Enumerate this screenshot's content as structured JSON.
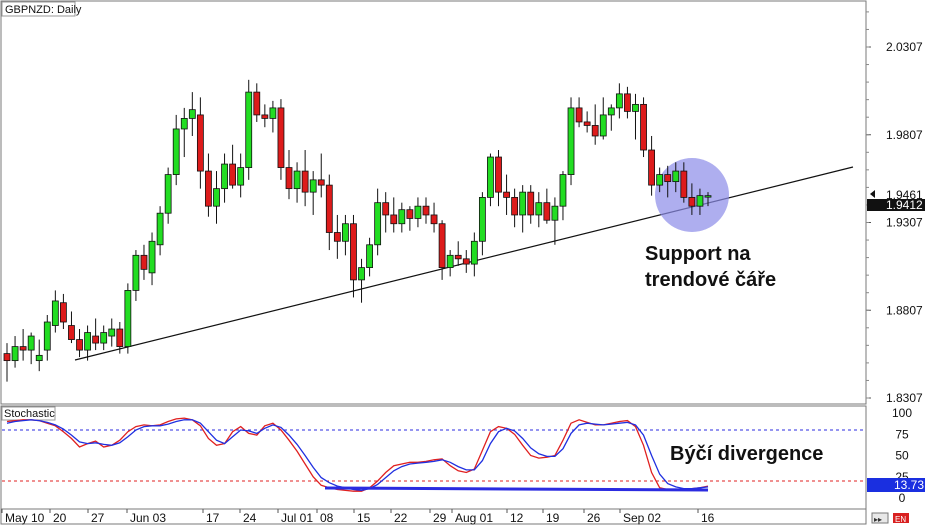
{
  "chart_data": [
    {
      "type": "candlestick",
      "title": "GBPNZD: Daily",
      "ylim": [
        1.83,
        2.055
      ],
      "y_ticks": [
        "2.0307",
        "1.9807",
        "1.9307",
        "1.8807",
        "1.8307"
      ],
      "x_ticks": [
        "May 10",
        "20",
        "27",
        "Jun 03",
        "17",
        "24",
        "Jul 01",
        "08",
        "15",
        "22",
        "29",
        "Aug 01",
        "12",
        "19",
        "26",
        "Sep 02",
        "16"
      ],
      "price_labels": {
        "last": "1.9461",
        "current": "1.9412"
      },
      "annotation": "Support na\ntrendové čáře",
      "ohlc": [
        [
          1.856,
          1.862,
          1.84,
          1.852
        ],
        [
          1.852,
          1.866,
          1.848,
          1.86
        ],
        [
          1.86,
          1.87,
          1.852,
          1.858
        ],
        [
          1.858,
          1.868,
          1.85,
          1.866
        ],
        [
          1.852,
          1.864,
          1.846,
          1.855
        ],
        [
          1.858,
          1.878,
          1.852,
          1.874
        ],
        [
          1.872,
          1.892,
          1.868,
          1.886
        ],
        [
          1.885,
          1.89,
          1.87,
          1.874
        ],
        [
          1.872,
          1.88,
          1.862,
          1.864
        ],
        [
          1.864,
          1.87,
          1.854,
          1.858
        ],
        [
          1.858,
          1.872,
          1.852,
          1.868
        ],
        [
          1.866,
          1.876,
          1.858,
          1.862
        ],
        [
          1.862,
          1.872,
          1.858,
          1.868
        ],
        [
          1.866,
          1.876,
          1.86,
          1.87
        ],
        [
          1.87,
          1.874,
          1.856,
          1.86
        ],
        [
          1.86,
          1.896,
          1.856,
          1.892
        ],
        [
          1.892,
          1.915,
          1.886,
          1.912
        ],
        [
          1.912,
          1.918,
          1.898,
          1.904
        ],
        [
          1.902,
          1.925,
          1.895,
          1.92
        ],
        [
          1.918,
          1.94,
          1.912,
          1.936
        ],
        [
          1.936,
          1.962,
          1.93,
          1.958
        ],
        [
          1.958,
          1.992,
          1.952,
          1.984
        ],
        [
          1.984,
          1.996,
          1.968,
          1.99
        ],
        [
          1.99,
          2.005,
          1.98,
          1.995
        ],
        [
          1.992,
          2.002,
          1.95,
          1.96
        ],
        [
          1.96,
          1.97,
          1.934,
          1.94
        ],
        [
          1.94,
          1.96,
          1.93,
          1.95
        ],
        [
          1.95,
          1.97,
          1.942,
          1.964
        ],
        [
          1.964,
          1.975,
          1.95,
          1.952
        ],
        [
          1.952,
          1.97,
          1.945,
          1.962
        ],
        [
          1.962,
          2.012,
          1.955,
          2.005
        ],
        [
          2.005,
          2.01,
          1.988,
          1.992
        ],
        [
          1.992,
          1.998,
          1.985,
          1.99
        ],
        [
          1.99,
          2.0,
          1.982,
          1.996
        ],
        [
          1.996,
          2.001,
          1.955,
          1.962
        ],
        [
          1.962,
          1.972,
          1.944,
          1.95
        ],
        [
          1.95,
          1.965,
          1.942,
          1.96
        ],
        [
          1.96,
          1.972,
          1.94,
          1.948
        ],
        [
          1.948,
          1.96,
          1.935,
          1.955
        ],
        [
          1.955,
          1.97,
          1.945,
          1.952
        ],
        [
          1.952,
          1.958,
          1.915,
          1.925
        ],
        [
          1.925,
          1.935,
          1.91,
          1.92
        ],
        [
          1.92,
          1.935,
          1.912,
          1.93
        ],
        [
          1.93,
          1.935,
          1.888,
          1.898
        ],
        [
          1.898,
          1.91,
          1.885,
          1.905
        ],
        [
          1.905,
          1.922,
          1.9,
          1.918
        ],
        [
          1.918,
          1.95,
          1.912,
          1.942
        ],
        [
          1.942,
          1.948,
          1.925,
          1.935
        ],
        [
          1.935,
          1.945,
          1.925,
          1.93
        ],
        [
          1.93,
          1.942,
          1.925,
          1.938
        ],
        [
          1.938,
          1.94,
          1.926,
          1.933
        ],
        [
          1.933,
          1.945,
          1.928,
          1.94
        ],
        [
          1.94,
          1.945,
          1.93,
          1.935
        ],
        [
          1.935,
          1.942,
          1.925,
          1.93
        ],
        [
          1.93,
          1.932,
          1.898,
          1.905
        ],
        [
          1.905,
          1.915,
          1.9,
          1.912
        ],
        [
          1.912,
          1.92,
          1.906,
          1.91
        ],
        [
          1.91,
          1.915,
          1.902,
          1.907
        ],
        [
          1.907,
          1.925,
          1.9,
          1.92
        ],
        [
          1.92,
          1.948,
          1.912,
          1.945
        ],
        [
          1.945,
          1.97,
          1.94,
          1.968
        ],
        [
          1.968,
          1.972,
          1.94,
          1.948
        ],
        [
          1.948,
          1.958,
          1.935,
          1.945
        ],
        [
          1.945,
          1.95,
          1.928,
          1.935
        ],
        [
          1.935,
          1.952,
          1.925,
          1.948
        ],
        [
          1.948,
          1.952,
          1.93,
          1.935
        ],
        [
          1.935,
          1.948,
          1.928,
          1.942
        ],
        [
          1.942,
          1.95,
          1.93,
          1.932
        ],
        [
          1.932,
          1.945,
          1.918,
          1.94
        ],
        [
          1.94,
          1.96,
          1.932,
          1.958
        ],
        [
          1.958,
          2.002,
          1.952,
          1.996
        ],
        [
          1.996,
          2.002,
          1.985,
          1.988
        ],
        [
          1.988,
          1.994,
          1.982,
          1.986
        ],
        [
          1.986,
          1.998,
          1.975,
          1.98
        ],
        [
          1.98,
          2.002,
          1.978,
          1.992
        ],
        [
          1.992,
          1.998,
          1.983,
          1.996
        ],
        [
          1.996,
          2.01,
          1.99,
          2.004
        ],
        [
          2.004,
          2.008,
          1.99,
          1.994
        ],
        [
          1.994,
          2.004,
          1.978,
          1.998
        ],
        [
          1.998,
          2.002,
          1.968,
          1.972
        ],
        [
          1.972,
          1.98,
          1.946,
          1.952
        ],
        [
          1.952,
          1.962,
          1.948,
          1.958
        ],
        [
          1.958,
          1.963,
          1.945,
          1.954
        ],
        [
          1.954,
          1.965,
          1.948,
          1.96
        ],
        [
          1.96,
          1.965,
          1.942,
          1.945
        ],
        [
          1.945,
          1.953,
          1.935,
          1.94
        ],
        [
          1.94,
          1.95,
          1.935,
          1.946
        ],
        [
          1.946,
          1.948,
          1.94,
          1.946
        ]
      ]
    },
    {
      "type": "line",
      "title": "Stochastic",
      "ylim": [
        0,
        100
      ],
      "y_ticks": [
        "100",
        "75",
        "50",
        "25",
        "0"
      ],
      "levels": [
        80,
        20
      ],
      "current_value_label": "13.73",
      "annotation": "Býčí divergence",
      "series": [
        {
          "color": "#e02020",
          "values": [
            90,
            91,
            92,
            92,
            91,
            88,
            85,
            78,
            70,
            60,
            64,
            67,
            60,
            62,
            68,
            78,
            84,
            86,
            85,
            86,
            90,
            93,
            94,
            92,
            85,
            70,
            62,
            64,
            78,
            84,
            76,
            74,
            85,
            88,
            80,
            68,
            55,
            40,
            25,
            15,
            12,
            10,
            9,
            8,
            8,
            12,
            20,
            30,
            38,
            40,
            42,
            42,
            43,
            45,
            46,
            38,
            32,
            30,
            34,
            56,
            78,
            84,
            82,
            75,
            62,
            50,
            47,
            48,
            50,
            68,
            88,
            92,
            89,
            86,
            86,
            88,
            90,
            91,
            84,
            62,
            30,
            12,
            10,
            9,
            10,
            11,
            12,
            14
          ]
        },
        {
          "color": "#2030e0",
          "values": [
            88,
            90,
            91,
            92,
            91,
            89,
            86,
            81,
            74,
            66,
            64,
            65,
            63,
            62,
            65,
            72,
            80,
            84,
            85,
            85,
            87,
            90,
            92,
            92,
            88,
            78,
            68,
            64,
            72,
            80,
            79,
            76,
            82,
            86,
            83,
            74,
            63,
            50,
            36,
            24,
            18,
            14,
            12,
            10,
            9,
            11,
            16,
            24,
            32,
            37,
            40,
            41,
            42,
            43,
            45,
            42,
            37,
            33,
            33,
            44,
            64,
            78,
            82,
            79,
            70,
            59,
            52,
            49,
            49,
            58,
            76,
            86,
            88,
            87,
            86,
            87,
            88,
            89,
            86,
            74,
            50,
            28,
            17,
            13,
            11,
            11,
            12,
            13
          ]
        }
      ]
    }
  ],
  "chart_footer": {
    "pager": "▸▸",
    "flag": "EN"
  }
}
